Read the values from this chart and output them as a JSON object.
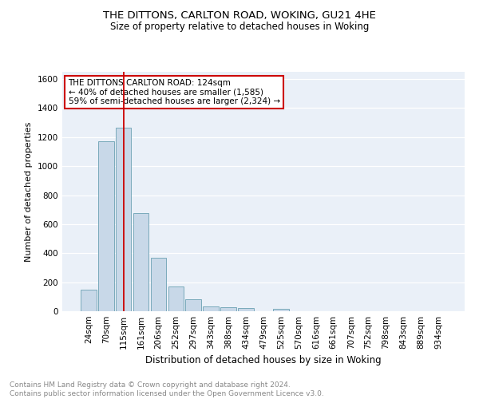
{
  "title1": "THE DITTONS, CARLTON ROAD, WOKING, GU21 4HE",
  "title2": "Size of property relative to detached houses in Woking",
  "xlabel": "Distribution of detached houses by size in Woking",
  "ylabel": "Number of detached properties",
  "categories": [
    "24sqm",
    "70sqm",
    "115sqm",
    "161sqm",
    "206sqm",
    "252sqm",
    "297sqm",
    "343sqm",
    "388sqm",
    "434sqm",
    "479sqm",
    "525sqm",
    "570sqm",
    "616sqm",
    "661sqm",
    "707sqm",
    "752sqm",
    "798sqm",
    "843sqm",
    "889sqm",
    "934sqm"
  ],
  "values": [
    148,
    1170,
    1265,
    675,
    370,
    170,
    85,
    35,
    25,
    20,
    0,
    15,
    0,
    0,
    0,
    0,
    0,
    0,
    0,
    0,
    0
  ],
  "bar_color": "#c8d8e8",
  "bar_edge_color": "#7aaabb",
  "vline_x": 2,
  "vline_color": "#cc0000",
  "annotation_text": "THE DITTONS CARLTON ROAD: 124sqm\n← 40% of detached houses are smaller (1,585)\n59% of semi-detached houses are larger (2,324) →",
  "annotation_box_color": "#ffffff",
  "annotation_box_edge": "#cc0000",
  "ylim": [
    0,
    1650
  ],
  "yticks": [
    0,
    200,
    400,
    600,
    800,
    1000,
    1200,
    1400,
    1600
  ],
  "footnote": "Contains HM Land Registry data © Crown copyright and database right 2024.\nContains public sector information licensed under the Open Government Licence v3.0.",
  "bg_color": "#eaf0f8",
  "fig_bg_color": "#ffffff",
  "title1_fontsize": 9.5,
  "title2_fontsize": 8.5,
  "xlabel_fontsize": 8.5,
  "ylabel_fontsize": 8,
  "tick_fontsize": 7.5,
  "annotation_fontsize": 7.5,
  "footnote_fontsize": 6.5
}
